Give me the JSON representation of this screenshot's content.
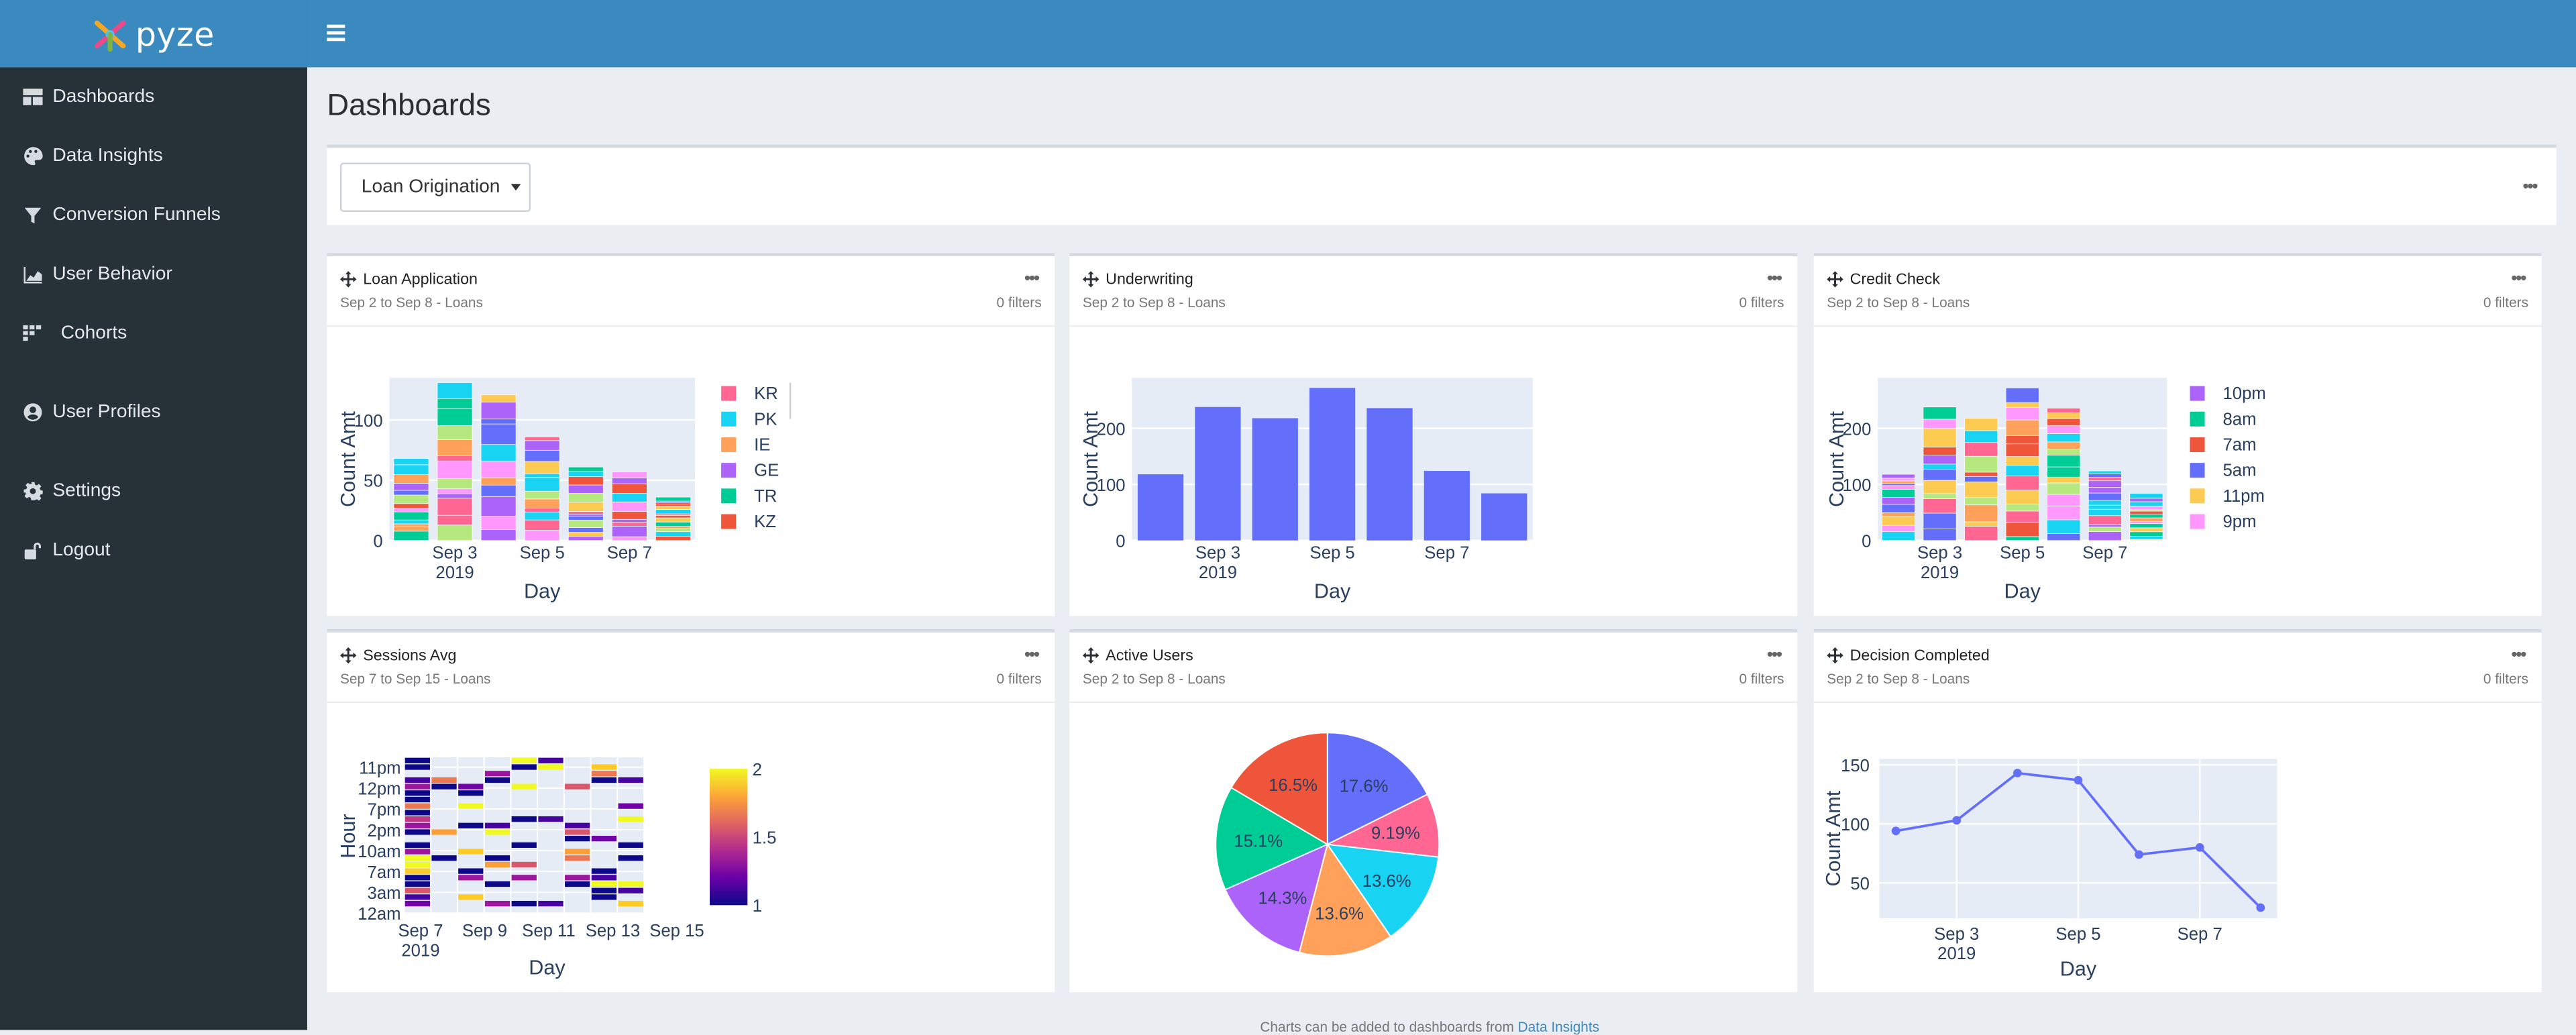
{
  "brand": {
    "name": "pyze"
  },
  "sidebar": {
    "items": [
      {
        "label": "Dashboards",
        "icon": "dashboard-icon"
      },
      {
        "label": "Data Insights",
        "icon": "palette-icon"
      },
      {
        "label": "Conversion Funnels",
        "icon": "filter-icon"
      },
      {
        "label": "User Behavior",
        "icon": "area-chart-icon"
      },
      {
        "label": "Cohorts",
        "icon": "cohorts-icon"
      },
      {
        "label": "User Profiles",
        "icon": "user-circle-icon"
      },
      {
        "label": "Settings",
        "icon": "gear-icon"
      },
      {
        "label": "Logout",
        "icon": "unlock-icon"
      }
    ]
  },
  "page": {
    "title": "Dashboards"
  },
  "filter": {
    "selected": "Loan Origination"
  },
  "footer": {
    "text": "Charts can be added to dashboards from ",
    "link": "Data Insights"
  },
  "cards": [
    {
      "title": "Loan Application",
      "subtitle": "Sep 2 to Sep 8  -  Loans",
      "filters": "0 filters"
    },
    {
      "title": "Underwriting",
      "subtitle": "Sep 2 to Sep 8  -  Loans",
      "filters": "0 filters"
    },
    {
      "title": "Credit Check",
      "subtitle": "Sep 2 to Sep 8  -  Loans",
      "filters": "0 filters"
    },
    {
      "title": "Sessions Avg",
      "subtitle": "Sep 7 to Sep 15  -  Loans",
      "filters": "0 filters"
    },
    {
      "title": "Active Users",
      "subtitle": "Sep 2 to Sep 8  -  Loans",
      "filters": "0 filters"
    },
    {
      "title": "Decision Completed",
      "subtitle": "Sep 2 to Sep 8  -  Loans",
      "filters": "0 filters"
    }
  ],
  "chart_data": [
    {
      "type": "bar",
      "stacked": true,
      "xlabel": "Day",
      "ylabel": "Count Amt",
      "x": [
        "2019-09-02",
        "2019-09-03",
        "2019-09-04",
        "2019-09-05",
        "2019-09-06",
        "2019-09-07",
        "2019-09-08"
      ],
      "xticks": [
        "Sep 3\n2019",
        "Sep 5",
        "Sep 7"
      ],
      "ylim": [
        0,
        135
      ],
      "yticks": [
        0,
        50,
        100
      ],
      "totals": [
        68,
        131,
        121,
        86,
        61,
        57,
        36
      ],
      "legend": [
        "KR",
        "PK",
        "IE",
        "GE",
        "TR",
        "KZ"
      ],
      "legend_colors": [
        "#ff6692",
        "#19d3f3",
        "#ffa15a",
        "#ab63fa",
        "#00cc96",
        "#ef553b"
      ],
      "segment_colors": [
        "#636efa",
        "#ef553b",
        "#00cc96",
        "#ab63fa",
        "#ffa15a",
        "#19d3f3",
        "#ff6692",
        "#b6e880",
        "#ff97ff",
        "#fecb52"
      ]
    },
    {
      "type": "bar",
      "xlabel": "Day",
      "ylabel": "Count Amt",
      "x": [
        "2019-09-02",
        "2019-09-03",
        "2019-09-04",
        "2019-09-05",
        "2019-09-06",
        "2019-09-07",
        "2019-09-08"
      ],
      "xticks": [
        "Sep 3\n2019",
        "Sep 5",
        "Sep 7"
      ],
      "values": [
        118,
        238,
        218,
        272,
        236,
        124,
        84
      ],
      "ylim": [
        0,
        290
      ],
      "yticks": [
        0,
        100,
        200
      ],
      "color": "#636efa"
    },
    {
      "type": "bar",
      "stacked": true,
      "xlabel": "Day",
      "ylabel": "Count Amt",
      "x": [
        "2019-09-02",
        "2019-09-03",
        "2019-09-04",
        "2019-09-05",
        "2019-09-06",
        "2019-09-07",
        "2019-09-08"
      ],
      "xticks": [
        "Sep 3\n2019",
        "Sep 5",
        "Sep 7"
      ],
      "ylim": [
        0,
        290
      ],
      "yticks": [
        0,
        100,
        200
      ],
      "totals": [
        118,
        238,
        218,
        272,
        236,
        124,
        84
      ],
      "legend": [
        "10pm",
        "8am",
        "7am",
        "5am",
        "11pm",
        "9pm"
      ],
      "legend_colors": [
        "#ab63fa",
        "#00cc96",
        "#ef553b",
        "#636efa",
        "#fecb52",
        "#ff97ff"
      ],
      "segment_colors": [
        "#636efa",
        "#ef553b",
        "#00cc96",
        "#ab63fa",
        "#ffa15a",
        "#19d3f3",
        "#ff6692",
        "#b6e880",
        "#ff97ff",
        "#fecb52"
      ]
    },
    {
      "type": "heatmap",
      "xlabel": "Day",
      "ylabel": "Hour",
      "xticks": [
        "Sep 7\n2019",
        "Sep 9",
        "Sep 11",
        "Sep 13",
        "Sep 15"
      ],
      "yticks": [
        "11pm",
        "12pm",
        "7pm",
        "2pm",
        "10am",
        "7am",
        "3am",
        "12am"
      ],
      "colorbar": {
        "min": 1,
        "max": 2,
        "ticks": [
          1,
          1.5,
          2
        ]
      }
    },
    {
      "type": "pie",
      "values": [
        17.6,
        9.19,
        13.6,
        13.6,
        14.3,
        15.1,
        16.5
      ],
      "labels": [
        "17.6%",
        "9.19%",
        "13.6%",
        "13.6%",
        "14.3%",
        "15.1%",
        "16.5%"
      ],
      "colors": [
        "#636efa",
        "#ff6692",
        "#19d3f3",
        "#ffa15a",
        "#ab63fa",
        "#00cc96",
        "#ef553b"
      ]
    },
    {
      "type": "line",
      "xlabel": "Day",
      "ylabel": "Count Amt",
      "x": [
        "2019-09-02",
        "2019-09-03",
        "2019-09-04",
        "2019-09-05",
        "2019-09-06",
        "2019-09-07",
        "2019-09-08"
      ],
      "xticks": [
        "Sep 3\n2019",
        "Sep 5",
        "Sep 7"
      ],
      "values": [
        94,
        103,
        143,
        137,
        74,
        80,
        29
      ],
      "ylim": [
        20,
        155
      ],
      "yticks": [
        50,
        100,
        150
      ],
      "color": "#636efa"
    }
  ]
}
